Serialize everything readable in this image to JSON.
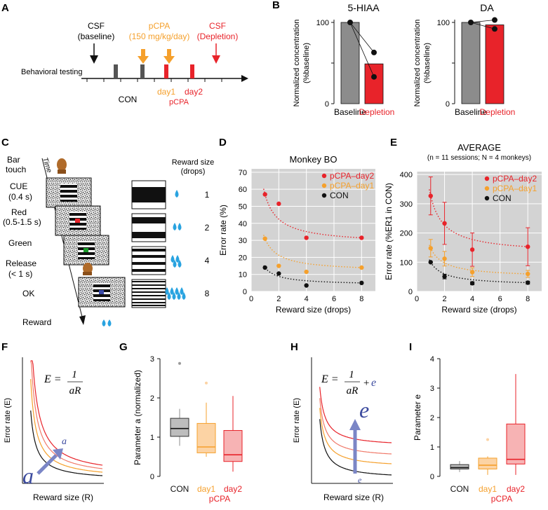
{
  "colors": {
    "red": "#e8232a",
    "orange": "#f5a02c",
    "black": "#111111",
    "gray": "#8c8c8c",
    "plotbg": "#d3d3d3",
    "blue": "#7b86c6",
    "darkblue": "#3b4a9e"
  },
  "panelA": {
    "label": "A",
    "csf_baseline": [
      "CSF",
      "(baseline)"
    ],
    "pcpa": [
      "pCPA",
      "(150 mg/kg/day)"
    ],
    "csf_depletion": [
      "CSF",
      "(Depletion)"
    ],
    "behavioral": "Behavioral testing",
    "con": "CON",
    "day1": "day1",
    "day2": "day2",
    "pcpa_label": "pCPA"
  },
  "panelB": {
    "label": "B",
    "ylabel": [
      "Normalized concentration",
      "(%baseline)"
    ],
    "categories": [
      "Baseline",
      "Depletion"
    ],
    "charts": [
      {
        "title": "5-HIAA",
        "baseline": 100,
        "depletion": 49,
        "points_depletion": [
          63,
          33
        ],
        "ylim": [
          0,
          100
        ]
      },
      {
        "title": "DA",
        "baseline": 100,
        "depletion": 97,
        "points_depletion": [
          103,
          92
        ],
        "ylim": [
          0,
          100
        ]
      }
    ]
  },
  "panelC": {
    "label": "C",
    "steps": [
      "Bar",
      "touch",
      "CUE",
      "(0.4 s)",
      "Red",
      "(0.5-1.5 s)",
      "Green",
      "Release",
      "(< 1 s)",
      "OK",
      "Reward"
    ],
    "time": "Time",
    "reward_title": [
      "Reward size",
      "(drops)"
    ],
    "sizes": [
      "1",
      "2",
      "4",
      "8"
    ]
  },
  "chart_data": [
    {
      "panel": "D",
      "type": "scatter",
      "title": "Monkey BO",
      "xlabel": "Reward size (drops)",
      "ylabel": "Error rate (%)",
      "xlim": [
        0,
        9
      ],
      "ylim": [
        0,
        72
      ],
      "xticks": [
        0,
        2,
        4,
        6,
        8
      ],
      "yticks": [
        0,
        10,
        20,
        30,
        40,
        50,
        60,
        70
      ],
      "x": [
        1,
        2,
        4,
        8
      ],
      "series": [
        {
          "name": "pCPA–day2",
          "color": "#e8232a",
          "values": [
            57,
            51.5,
            31.5,
            31.5
          ]
        },
        {
          "name": "pCPA–day1",
          "color": "#f5a02c",
          "values": [
            31,
            15,
            11.5,
            14
          ]
        },
        {
          "name": "CON",
          "color": "#111111",
          "values": [
            14,
            10.5,
            3.5,
            5
          ]
        }
      ]
    },
    {
      "panel": "E",
      "type": "scatter",
      "title": "AVERAGE",
      "subtitle": "(n = 11 sessions; N = 4 monkeys)",
      "xlabel": "Reward size (drops)",
      "ylabel": "Error rate (%ER1 in CON)",
      "xlim": [
        0,
        9
      ],
      "ylim": [
        0,
        410
      ],
      "xticks": [
        0,
        2,
        4,
        6,
        8
      ],
      "yticks": [
        0,
        100,
        200,
        300,
        400
      ],
      "x": [
        1,
        2,
        4,
        8
      ],
      "series": [
        {
          "name": "pCPA–day2",
          "color": "#e8232a",
          "values": [
            327,
            233,
            143,
            153
          ],
          "err": [
            65,
            72,
            57,
            65
          ]
        },
        {
          "name": "pCPA–day1",
          "color": "#f5a02c",
          "values": [
            148,
            112,
            66,
            60
          ],
          "err": [
            30,
            25,
            15,
            12
          ]
        },
        {
          "name": "CON",
          "color": "#111111",
          "values": [
            100,
            51,
            28,
            30
          ],
          "err": [
            0,
            8,
            5,
            5
          ]
        }
      ]
    },
    {
      "panel": "G",
      "type": "box",
      "ylabel": "Parameter a (normalized)",
      "ylim": [
        0,
        3
      ],
      "yticks": [
        0,
        1,
        2,
        3
      ],
      "categories": [
        "CON",
        "day1",
        "day2"
      ],
      "group_label": "pCPA",
      "boxes": [
        {
          "color": "#8c8c8c",
          "whislo": 0.78,
          "q1": 1.02,
          "med": 1.22,
          "q3": 1.48,
          "whishi": 1.72,
          "fliers": [
            2.88
          ]
        },
        {
          "color": "#f5a02c",
          "whislo": 0.5,
          "q1": 0.6,
          "med": 0.75,
          "q3": 1.35,
          "whishi": 1.88,
          "fliers": [
            2.38
          ]
        },
        {
          "color": "#e8232a",
          "whislo": 0.12,
          "q1": 0.38,
          "med": 0.55,
          "q3": 1.17,
          "whishi": 2.05,
          "fliers": []
        }
      ]
    },
    {
      "panel": "I",
      "type": "box",
      "ylabel": "Parameter e",
      "ylim": [
        0,
        4
      ],
      "yticks": [
        0,
        1,
        2,
        3,
        4
      ],
      "categories": [
        "CON",
        "day1",
        "day2"
      ],
      "group_label": "pCPA",
      "boxes": [
        {
          "color": "#8c8c8c",
          "whislo": 0.15,
          "q1": 0.25,
          "med": 0.3,
          "q3": 0.4,
          "whishi": 0.52,
          "fliers": []
        },
        {
          "color": "#f5a02c",
          "whislo": 0.05,
          "q1": 0.25,
          "med": 0.38,
          "q3": 0.62,
          "whishi": 0.68,
          "fliers": [
            1.25
          ]
        },
        {
          "color": "#e8232a",
          "whislo": 0.05,
          "q1": 0.42,
          "med": 0.58,
          "q3": 1.78,
          "whishi": 3.48,
          "fliers": []
        }
      ]
    }
  ],
  "panelF": {
    "label": "F",
    "ylabel": "Error rate (E)",
    "xlabel": "Reward size (R)",
    "eq_lhs": "E =",
    "eq_num": "1",
    "eq_den": "aR",
    "arrow_small": "a",
    "arrow_big": "a"
  },
  "panelG": {
    "label": "G"
  },
  "panelH": {
    "label": "H",
    "ylabel": "Error rate (E)",
    "xlabel": "Reward size (R)",
    "eq_lhs": "E =",
    "eq_num": "1",
    "eq_den": "aR",
    "eq_plus": "+",
    "eq_e": "e",
    "arrow_big": "e",
    "arrow_small": "e"
  },
  "panelI": {
    "label": "I"
  },
  "panelD": {
    "label": "D"
  },
  "panelE": {
    "label": "E"
  }
}
